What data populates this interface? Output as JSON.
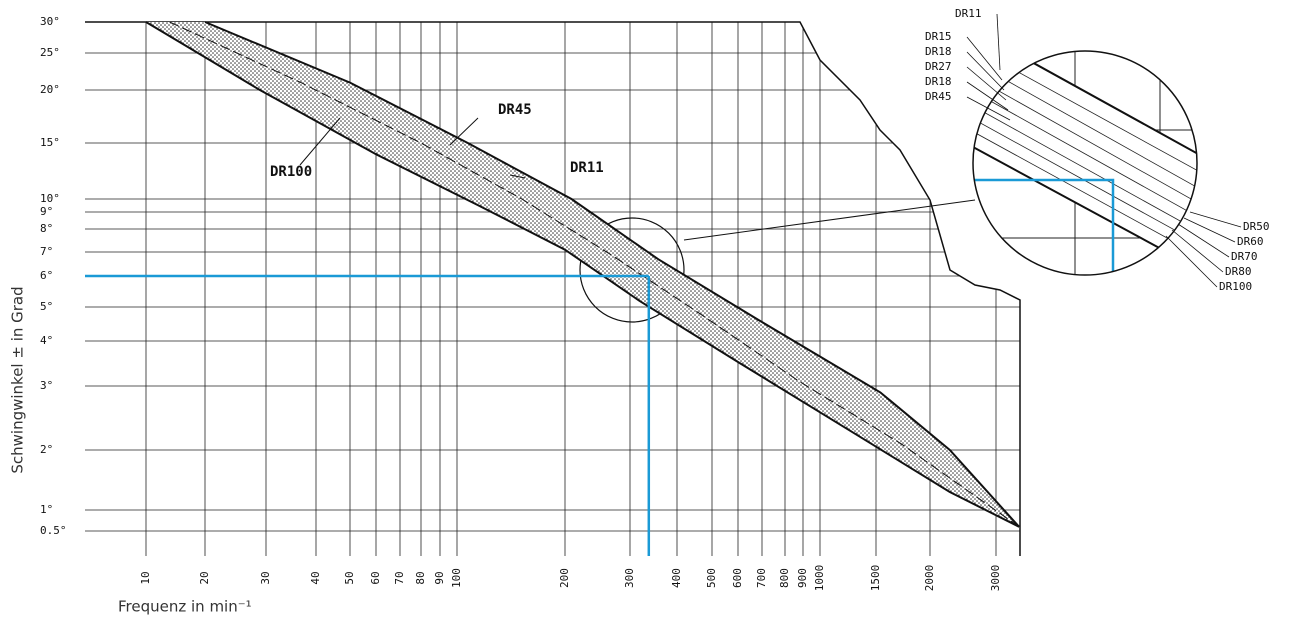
{
  "chart_data": {
    "type": "band",
    "y_label": "Schwingwinkel ± in Grad",
    "x_label": "Frequenz in min⁻¹",
    "xticks": [
      10,
      20,
      30,
      40,
      50,
      60,
      70,
      80,
      90,
      100,
      200,
      300,
      400,
      500,
      600,
      700,
      800,
      900,
      1000,
      1500,
      2000,
      3000
    ],
    "yticks": [
      {
        "value": 30,
        "label": "30°"
      },
      {
        "value": 25,
        "label": "25°"
      },
      {
        "value": 20,
        "label": "20°"
      },
      {
        "value": 15,
        "label": "15°"
      },
      {
        "value": 10,
        "label": "10°"
      },
      {
        "value": 9,
        "label": "9°"
      },
      {
        "value": 8,
        "label": "8°"
      },
      {
        "value": 7,
        "label": "7°"
      },
      {
        "value": 6,
        "label": "6°"
      },
      {
        "value": 5,
        "label": "5°"
      },
      {
        "value": 4,
        "label": "4°"
      },
      {
        "value": 3,
        "label": "3°"
      },
      {
        "value": 2,
        "label": "2°"
      },
      {
        "value": 1,
        "label": "1°"
      },
      {
        "value": 0.5,
        "label": "0.5°"
      }
    ],
    "grid": true,
    "series": [
      {
        "name": "DR11",
        "color": "#111111",
        "x": [
          20,
          50,
          110,
          210,
          360,
          690,
          1540,
          2300,
          3350
        ],
        "values": [
          30,
          21,
          15,
          10,
          6.7,
          4.6,
          2.9,
          2,
          0.6
        ]
      },
      {
        "name": "DR45",
        "color": "#111111",
        "x": [
          14,
          37,
          80,
          160,
          270,
          466,
          880,
          1730,
          3350
        ],
        "values": [
          30,
          21,
          15,
          10,
          6.9,
          4.8,
          3.1,
          2.1,
          0.6
        ]
      },
      {
        "name": "DR100",
        "color": "#111111",
        "x": [
          10,
          29,
          60,
          120,
          200,
          320,
          610,
          1270,
          2300,
          3350
        ],
        "values": [
          30,
          20,
          14,
          9.5,
          7.1,
          5.2,
          3.5,
          2.3,
          1.3,
          0.6
        ]
      }
    ],
    "reading": {
      "x": 340,
      "y": 6,
      "color": "#1a9ad6"
    },
    "inset_labels_left": [
      "DR11",
      "DR15",
      "DR18",
      "DR27",
      "DR18",
      "DR45"
    ],
    "inset_labels_right": [
      "DR50",
      "DR60",
      "DR70",
      "DR80",
      "DR100"
    ]
  }
}
